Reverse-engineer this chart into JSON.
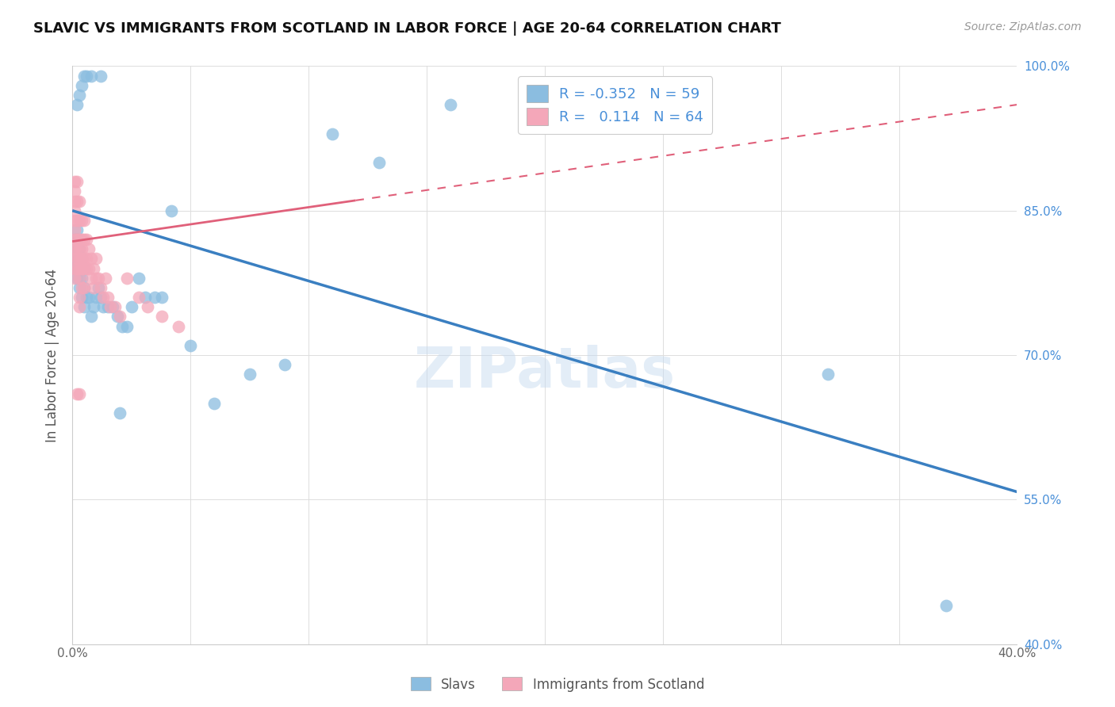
{
  "title": "SLAVIC VS IMMIGRANTS FROM SCOTLAND IN LABOR FORCE | AGE 20-64 CORRELATION CHART",
  "source": "Source: ZipAtlas.com",
  "ylabel": "In Labor Force | Age 20-64",
  "xlim": [
    0.0,
    0.4
  ],
  "ylim": [
    0.4,
    1.0
  ],
  "xticks": [
    0.0,
    0.05,
    0.1,
    0.15,
    0.2,
    0.25,
    0.3,
    0.35,
    0.4
  ],
  "yticks": [
    0.4,
    0.55,
    0.7,
    0.85,
    1.0
  ],
  "yticklabels": [
    "40.0%",
    "55.0%",
    "70.0%",
    "85.0%",
    "100.0%"
  ],
  "slavs_color": "#8BBDE0",
  "scotland_color": "#F4A7B9",
  "slavs_line_color": "#3A7FC1",
  "scotland_line_color": "#E0607A",
  "slavs_R": -0.352,
  "slavs_N": 59,
  "scotland_R": 0.114,
  "scotland_N": 64,
  "legend_label_slavs": "Slavs",
  "legend_label_scotland": "Immigrants from Scotland",
  "watermark": "ZIPatlas",
  "slavs_x": [
    0.001,
    0.001,
    0.001,
    0.001,
    0.002,
    0.002,
    0.002,
    0.002,
    0.002,
    0.002,
    0.003,
    0.003,
    0.003,
    0.003,
    0.003,
    0.004,
    0.004,
    0.004,
    0.005,
    0.005,
    0.005,
    0.006,
    0.007,
    0.008,
    0.009,
    0.01,
    0.011,
    0.012,
    0.013,
    0.015,
    0.017,
    0.019,
    0.021,
    0.023,
    0.025,
    0.028,
    0.031,
    0.035,
    0.038,
    0.042,
    0.05,
    0.06,
    0.075,
    0.09,
    0.11,
    0.13,
    0.16,
    0.2,
    0.25,
    0.32,
    0.37,
    0.002,
    0.003,
    0.004,
    0.005,
    0.006,
    0.008,
    0.012,
    0.02
  ],
  "slavs_y": [
    0.8,
    0.82,
    0.81,
    0.79,
    0.78,
    0.8,
    0.83,
    0.81,
    0.79,
    0.82,
    0.77,
    0.79,
    0.81,
    0.78,
    0.8,
    0.76,
    0.78,
    0.8,
    0.75,
    0.77,
    0.79,
    0.76,
    0.76,
    0.74,
    0.75,
    0.76,
    0.77,
    0.76,
    0.75,
    0.75,
    0.75,
    0.74,
    0.73,
    0.73,
    0.75,
    0.78,
    0.76,
    0.76,
    0.76,
    0.85,
    0.71,
    0.65,
    0.68,
    0.69,
    0.93,
    0.9,
    0.96,
    0.97,
    0.98,
    0.68,
    0.44,
    0.96,
    0.97,
    0.98,
    0.99,
    0.99,
    0.99,
    0.99,
    0.64
  ],
  "scotland_x": [
    0.001,
    0.001,
    0.001,
    0.001,
    0.001,
    0.001,
    0.001,
    0.001,
    0.001,
    0.001,
    0.001,
    0.002,
    0.002,
    0.002,
    0.002,
    0.002,
    0.002,
    0.002,
    0.003,
    0.003,
    0.003,
    0.003,
    0.003,
    0.003,
    0.003,
    0.003,
    0.003,
    0.004,
    0.004,
    0.004,
    0.004,
    0.004,
    0.004,
    0.005,
    0.005,
    0.005,
    0.005,
    0.005,
    0.006,
    0.006,
    0.006,
    0.007,
    0.007,
    0.008,
    0.008,
    0.009,
    0.009,
    0.01,
    0.01,
    0.011,
    0.012,
    0.013,
    0.014,
    0.015,
    0.016,
    0.018,
    0.02,
    0.023,
    0.028,
    0.032,
    0.038,
    0.045,
    0.002,
    0.003
  ],
  "scotland_y": [
    0.84,
    0.86,
    0.88,
    0.82,
    0.81,
    0.85,
    0.87,
    0.83,
    0.8,
    0.79,
    0.78,
    0.84,
    0.86,
    0.88,
    0.82,
    0.81,
    0.8,
    0.79,
    0.84,
    0.86,
    0.82,
    0.81,
    0.8,
    0.79,
    0.78,
    0.76,
    0.75,
    0.84,
    0.82,
    0.81,
    0.8,
    0.79,
    0.77,
    0.84,
    0.82,
    0.8,
    0.79,
    0.77,
    0.82,
    0.8,
    0.79,
    0.81,
    0.79,
    0.8,
    0.78,
    0.79,
    0.77,
    0.8,
    0.78,
    0.78,
    0.77,
    0.76,
    0.78,
    0.76,
    0.75,
    0.75,
    0.74,
    0.78,
    0.76,
    0.75,
    0.74,
    0.73,
    0.66,
    0.66
  ],
  "slavs_trend_x0": 0.0,
  "slavs_trend_y0": 0.85,
  "slavs_trend_x1": 0.4,
  "slavs_trend_y1": 0.558,
  "scotland_trend_x0": 0.0,
  "scotland_trend_y0": 0.818,
  "scotland_trend_x1": 0.4,
  "scotland_trend_y1": 0.96
}
